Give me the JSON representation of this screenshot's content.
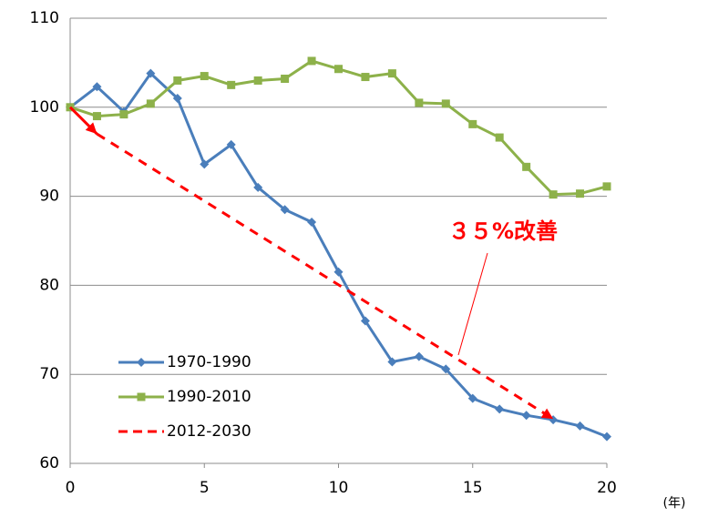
{
  "chart_data": {
    "type": "line",
    "x": [
      0,
      1,
      2,
      3,
      4,
      5,
      6,
      7,
      8,
      9,
      10,
      11,
      12,
      13,
      14,
      15,
      16,
      17,
      18,
      19,
      20
    ],
    "series": [
      {
        "name": "1970-1990",
        "color": "#4a7ebb",
        "marker": "diamond",
        "values": [
          100,
          102.3,
          99.5,
          103.8,
          101,
          93.6,
          95.8,
          91,
          88.5,
          87.1,
          81.5,
          76,
          71.4,
          72,
          70.6,
          67.3,
          66.1,
          65.4,
          64.9,
          64.2,
          63
        ]
      },
      {
        "name": "1990-2010",
        "color": "#8db14a",
        "marker": "square",
        "values": [
          100,
          99,
          99.2,
          100.4,
          103,
          103.5,
          102.5,
          103,
          103.2,
          105.2,
          104.3,
          103.4,
          103.8,
          100.5,
          100.4,
          98.1,
          96.6,
          93.3,
          90.2,
          90.3,
          91.1
        ]
      },
      {
        "name": "2012-2030",
        "color": "#ff0000",
        "dashed": true,
        "x": [
          0,
          1,
          18
        ],
        "values": [
          100,
          97,
          65
        ]
      }
    ],
    "annotation": "３５%改善",
    "x_label": "(年)",
    "xlim": [
      0,
      20
    ],
    "xticks": [
      0,
      5,
      10,
      15,
      20
    ],
    "ylim": [
      60,
      110
    ],
    "yticks": [
      60,
      70,
      80,
      90,
      100,
      110
    ],
    "grid": true,
    "legend": "lower left"
  }
}
